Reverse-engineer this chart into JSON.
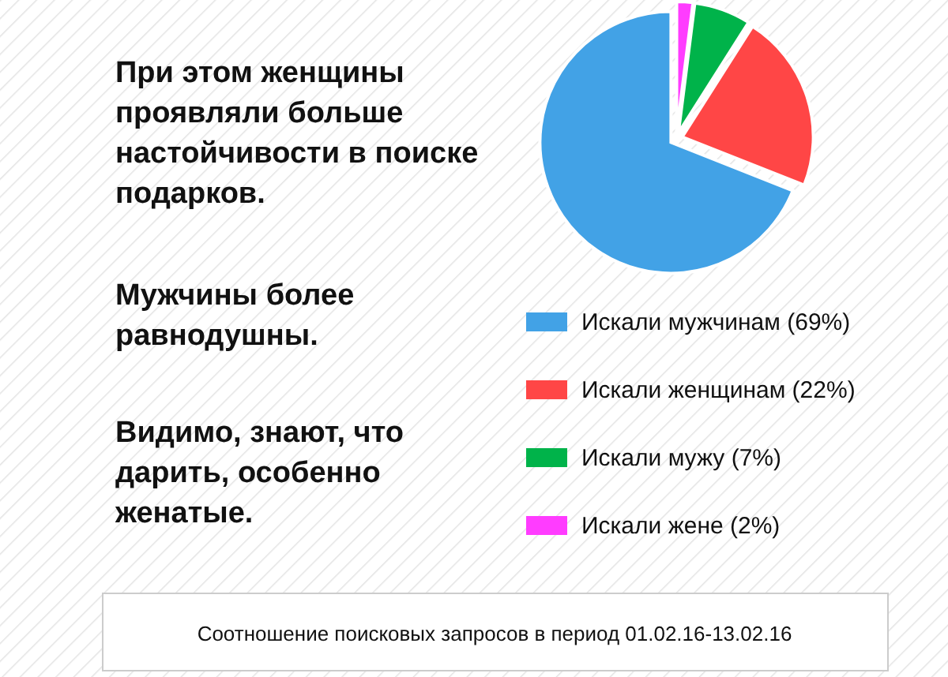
{
  "chart_data": {
    "type": "pie",
    "categories": [
      "Искали мужчинам (69%)",
      "Искали женщинам (22%)",
      "Искали мужу (7%)",
      "Искали жене (2%)"
    ],
    "values": [
      69,
      22,
      7,
      2
    ],
    "colors": [
      "#42a2e6",
      "#ff4646",
      "#00b34a",
      "#ff3cff"
    ],
    "legend": "bottom right",
    "annotations": [
      "При этом женщины\nпроявляли больше\nнастойчивости в поиске\nподарков.",
      "Мужчины более\nравнодушны.",
      "Видимо, знают, что\nдарить, особенно\nженатые.",
      "Соотношение поисковых запросов в период 01.02.16-13.02.16"
    ]
  }
}
